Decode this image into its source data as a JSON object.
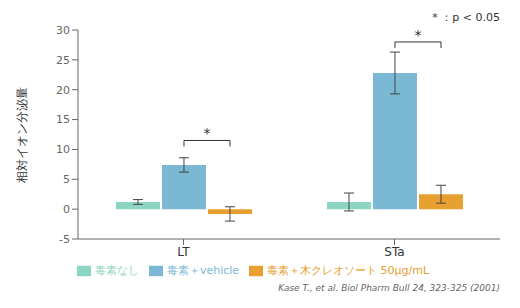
{
  "chart_data": {
    "type": "bar",
    "categories": [
      "LT",
      "STa"
    ],
    "series": [
      {
        "name": "毒素なし",
        "color": "#8dd5c3",
        "values": [
          1.2,
          1.2
        ],
        "errors": [
          0.4,
          1.5
        ]
      },
      {
        "name": "毒素＋vehicle",
        "color": "#7ab8d4",
        "values": [
          7.4,
          22.8
        ],
        "errors": [
          1.2,
          3.5
        ]
      },
      {
        "name": "毒素＋木クレオソート  50μg/mL",
        "color": "#e8a030",
        "values": [
          -0.8,
          2.5
        ],
        "errors": [
          1.2,
          1.5
        ]
      }
    ],
    "ylabel": "相対イオン分泌量",
    "ylim": [
      -5,
      30
    ],
    "yticks": [
      -5,
      0,
      5,
      10,
      15,
      20,
      25,
      30
    ],
    "grid": false,
    "legend": "bottom",
    "significance": [
      {
        "category": "LT",
        "series": [
          1,
          2
        ],
        "y": 11.5,
        "label": "*"
      },
      {
        "category": "STa",
        "series": [
          1,
          2
        ],
        "y": 28.0,
        "label": "*"
      }
    ],
    "annotation": "* ：p < 0.05",
    "source": "Kase T., et al. Biol Pharm Bull 24, 323-325 (2001)"
  }
}
